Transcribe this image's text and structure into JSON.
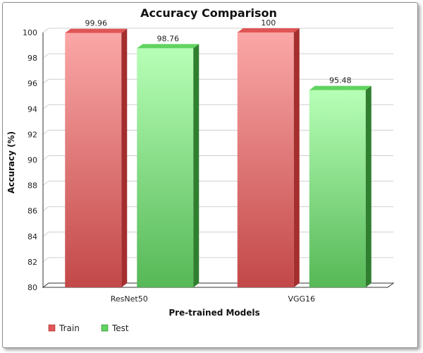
{
  "chart_data": {
    "type": "bar",
    "title": "Accuracy Comparison",
    "xlabel": "Pre-trained Models",
    "ylabel": "Accuracy (%)",
    "categories": [
      "ResNet50",
      "VGG16"
    ],
    "series": [
      {
        "name": "Train",
        "values": [
          99.96,
          100
        ]
      },
      {
        "name": "Test",
        "values": [
          98.76,
          95.48
        ]
      }
    ],
    "value_labels": [
      [
        "99.96",
        "100"
      ],
      [
        "98.76",
        "95.48"
      ]
    ],
    "ylim": [
      80,
      100
    ],
    "yticks": [
      "80",
      "82",
      "84",
      "86",
      "88",
      "90",
      "92",
      "94",
      "96",
      "98",
      "100"
    ],
    "grid": true,
    "legend_position": "bottom-left",
    "colors": {
      "Train": {
        "front_top": "#FBA7A7",
        "front_bottom": "#C34848",
        "side": "#A42E2E",
        "top": "#E05555"
      },
      "Test": {
        "front_top": "#B7FFB7",
        "front_bottom": "#56B856",
        "side": "#2F7F2F",
        "top": "#5FD45F"
      }
    }
  }
}
